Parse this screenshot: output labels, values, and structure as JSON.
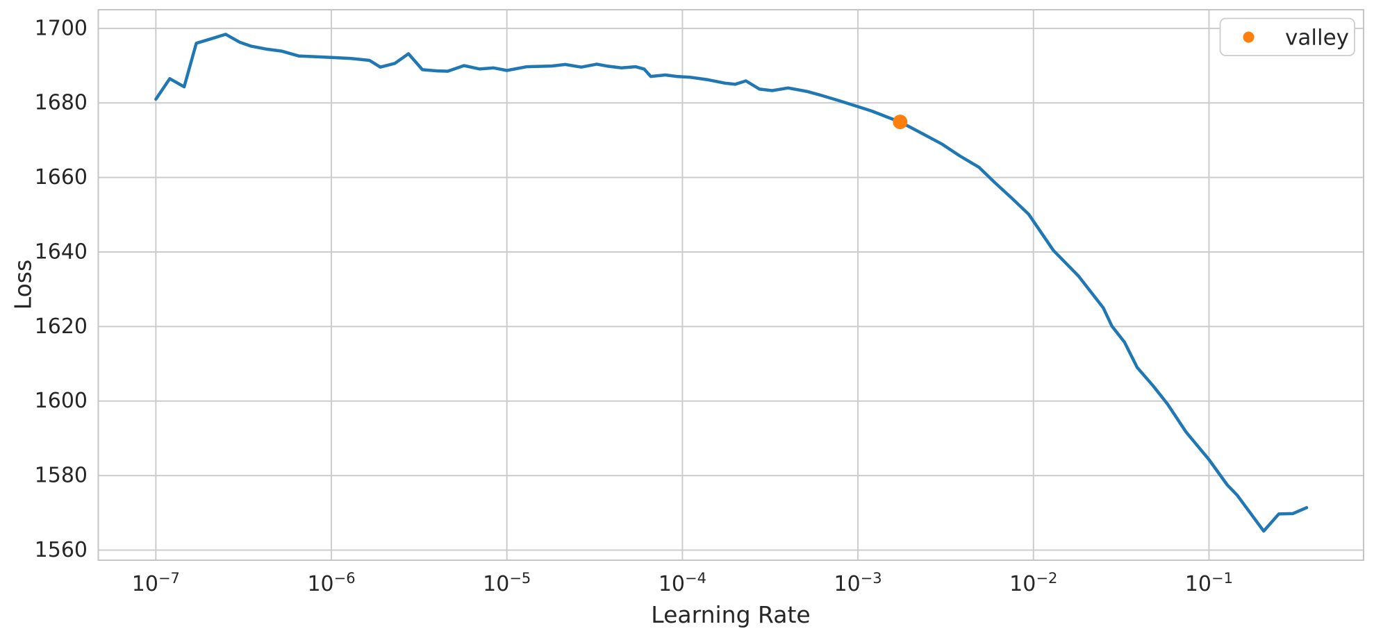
{
  "chart_data": {
    "type": "line",
    "title": "",
    "xlabel": "Learning Rate",
    "ylabel": "Loss",
    "x_scale": "log",
    "y_scale": "linear",
    "grid": true,
    "xlim": [
      4.7e-08,
      0.76
    ],
    "ylim": [
      1557.3,
      1705.0
    ],
    "x_tick_exponents": [
      -7,
      -6,
      -5,
      -4,
      -3,
      -2,
      -1
    ],
    "x_tick_base": "10",
    "y_ticks": [
      1560,
      1580,
      1600,
      1620,
      1640,
      1660,
      1680,
      1700
    ],
    "colors": {
      "line": "#1f77b4",
      "marker": "#ff7f0e",
      "grid": "#cccccc",
      "spine": "#c5c5c5",
      "text": "#262626",
      "background": "#ffffff",
      "legend_border": "#cccccc",
      "legend_fill": "#ffffff"
    },
    "legend": {
      "position": "upper right",
      "entries": [
        {
          "label": "valley",
          "marker": "dot",
          "color": "#ff7f0e"
        }
      ]
    },
    "series": [
      {
        "name": "loss-curve",
        "color": "#1f77b4",
        "x": [
          1e-07,
          1.2e-07,
          1.45e-07,
          1.7e-07,
          2.1e-07,
          2.5e-07,
          3e-07,
          3.5e-07,
          4.3e-07,
          5.2e-07,
          6.5e-07,
          8e-07,
          1e-06,
          1.3e-06,
          1.65e-06,
          1.9e-06,
          2.3e-06,
          2.75e-06,
          3.3e-06,
          4e-06,
          4.6e-06,
          5.7e-06,
          7e-06,
          8.4e-06,
          1e-05,
          1.3e-05,
          1.8e-05,
          2.15e-05,
          2.65e-05,
          3.25e-05,
          3.7e-05,
          4.5e-05,
          5.4e-05,
          6.05e-05,
          6.6e-05,
          8e-05,
          9.3e-05,
          0.00011,
          0.00014,
          0.000175,
          0.0002,
          0.00023,
          0.000275,
          0.000325,
          0.0004,
          0.00051,
          0.0006,
          0.00078,
          0.001,
          0.0012,
          0.00145,
          0.00174,
          0.0023,
          0.003,
          0.0038,
          0.0049,
          0.006,
          0.0075,
          0.0094,
          0.013,
          0.018,
          0.025,
          0.028,
          0.033,
          0.039,
          0.048,
          0.058,
          0.074,
          0.1,
          0.127,
          0.145,
          0.205,
          0.25,
          0.3,
          0.36
        ],
        "y": [
          1681,
          1686.5,
          1684.3,
          1696,
          1697.3,
          1698.4,
          1696.3,
          1695.2,
          1694.4,
          1693.9,
          1692.6,
          1692.4,
          1692.2,
          1691.9,
          1691.4,
          1689.6,
          1690.6,
          1693.2,
          1688.9,
          1688.6,
          1688.5,
          1690,
          1689.1,
          1689.4,
          1688.7,
          1689.7,
          1689.9,
          1690.3,
          1689.6,
          1690.4,
          1689.9,
          1689.4,
          1689.7,
          1689.1,
          1687.1,
          1687.5,
          1687.1,
          1686.9,
          1686.2,
          1685.3,
          1685,
          1685.9,
          1683.7,
          1683.3,
          1684,
          1683.1,
          1682.2,
          1680.6,
          1679,
          1677.8,
          1676.3,
          1674.9,
          1671.9,
          1669,
          1665.8,
          1662.7,
          1658.7,
          1654.5,
          1650.1,
          1640.4,
          1633.6,
          1625,
          1620.1,
          1615.8,
          1609,
          1604.1,
          1599.2,
          1591.7,
          1584.3,
          1577.5,
          1574.7,
          1565.1,
          1569.7,
          1569.8,
          1571.4
        ]
      }
    ],
    "annotations": [
      {
        "name": "valley",
        "x": 0.00174,
        "y": 1674.9,
        "color": "#ff7f0e"
      }
    ]
  }
}
